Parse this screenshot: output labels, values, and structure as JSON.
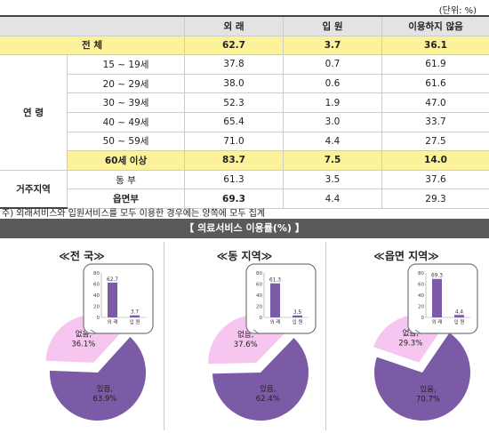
{
  "unit_label": "(단위: %)",
  "table": {
    "headers": [
      "외 래",
      "입 원",
      "이용하지 않음"
    ],
    "total": {
      "label": "전 체",
      "values": [
        "62.7",
        "3.7",
        "36.1"
      ]
    },
    "age_group": "연 령",
    "age_rows": [
      {
        "label": "15 ~ 19세",
        "values": [
          "37.8",
          "0.7",
          "61.9"
        ]
      },
      {
        "label": "20 ~ 29세",
        "values": [
          "38.0",
          "0.6",
          "61.6"
        ]
      },
      {
        "label": "30 ~ 39세",
        "values": [
          "52.3",
          "1.9",
          "47.0"
        ]
      },
      {
        "label": "40 ~ 49세",
        "values": [
          "65.4",
          "3.0",
          "33.7"
        ]
      },
      {
        "label": "50 ~ 59세",
        "values": [
          "71.0",
          "4.4",
          "27.5"
        ]
      },
      {
        "label": "60세 이상",
        "values": [
          "83.7",
          "7.5",
          "14.0"
        ]
      }
    ],
    "region_group": "거주지역",
    "region_rows": [
      {
        "label": "동 부",
        "values": [
          "61.3",
          "3.5",
          "37.6"
        ]
      },
      {
        "label": "읍면부",
        "values": [
          "69.3",
          "4.4",
          "29.3"
        ]
      }
    ]
  },
  "note": "주) 외래서비스와 입원서비스를 모두 이용한 경우에는 양쪽에 모두 집계",
  "section_title": "【 의료서비스 이용률(%) 】",
  "chart_data": [
    {
      "type": "pie",
      "title": "≪전 국≫",
      "slices": [
        {
          "label": "있음,",
          "value": 63.9,
          "display": "63.9%"
        },
        {
          "label": "없음,",
          "value": 36.1,
          "display": "36.1%"
        }
      ],
      "inset": {
        "type": "bar",
        "categories": [
          "외 래",
          "입 원"
        ],
        "values": [
          62.7,
          3.7
        ],
        "ylim": [
          0,
          80
        ],
        "yticks": [
          "0",
          "20",
          "40",
          "60",
          "80"
        ]
      }
    },
    {
      "type": "pie",
      "title": "≪동 지역≫",
      "slices": [
        {
          "label": "있음,",
          "value": 62.4,
          "display": "62.4%"
        },
        {
          "label": "없음,",
          "value": 37.6,
          "display": "37.6%"
        }
      ],
      "inset": {
        "type": "bar",
        "categories": [
          "외 래",
          "입 원"
        ],
        "values": [
          61.3,
          3.5
        ],
        "ylim": [
          0,
          80
        ],
        "yticks": [
          "0",
          "20",
          "40",
          "60",
          "80"
        ]
      }
    },
    {
      "type": "pie",
      "title": "≪읍면 지역≫",
      "slices": [
        {
          "label": "있음,",
          "value": 70.7,
          "display": "70.7%"
        },
        {
          "label": "없음,",
          "value": 29.3,
          "display": "29.3%"
        }
      ],
      "inset": {
        "type": "bar",
        "categories": [
          "외 래",
          "입 원"
        ],
        "values": [
          69.3,
          4.4
        ],
        "ylim": [
          0,
          80
        ],
        "yticks": [
          "0",
          "20",
          "40",
          "60",
          "80"
        ]
      }
    }
  ],
  "colors": {
    "yes": "#7b5aa6",
    "no": "#f7c6f0",
    "bar": "#7b5aa6",
    "highlight": "#fbf29a",
    "header": "#e3e3e3",
    "band": "#5a5a5a"
  }
}
